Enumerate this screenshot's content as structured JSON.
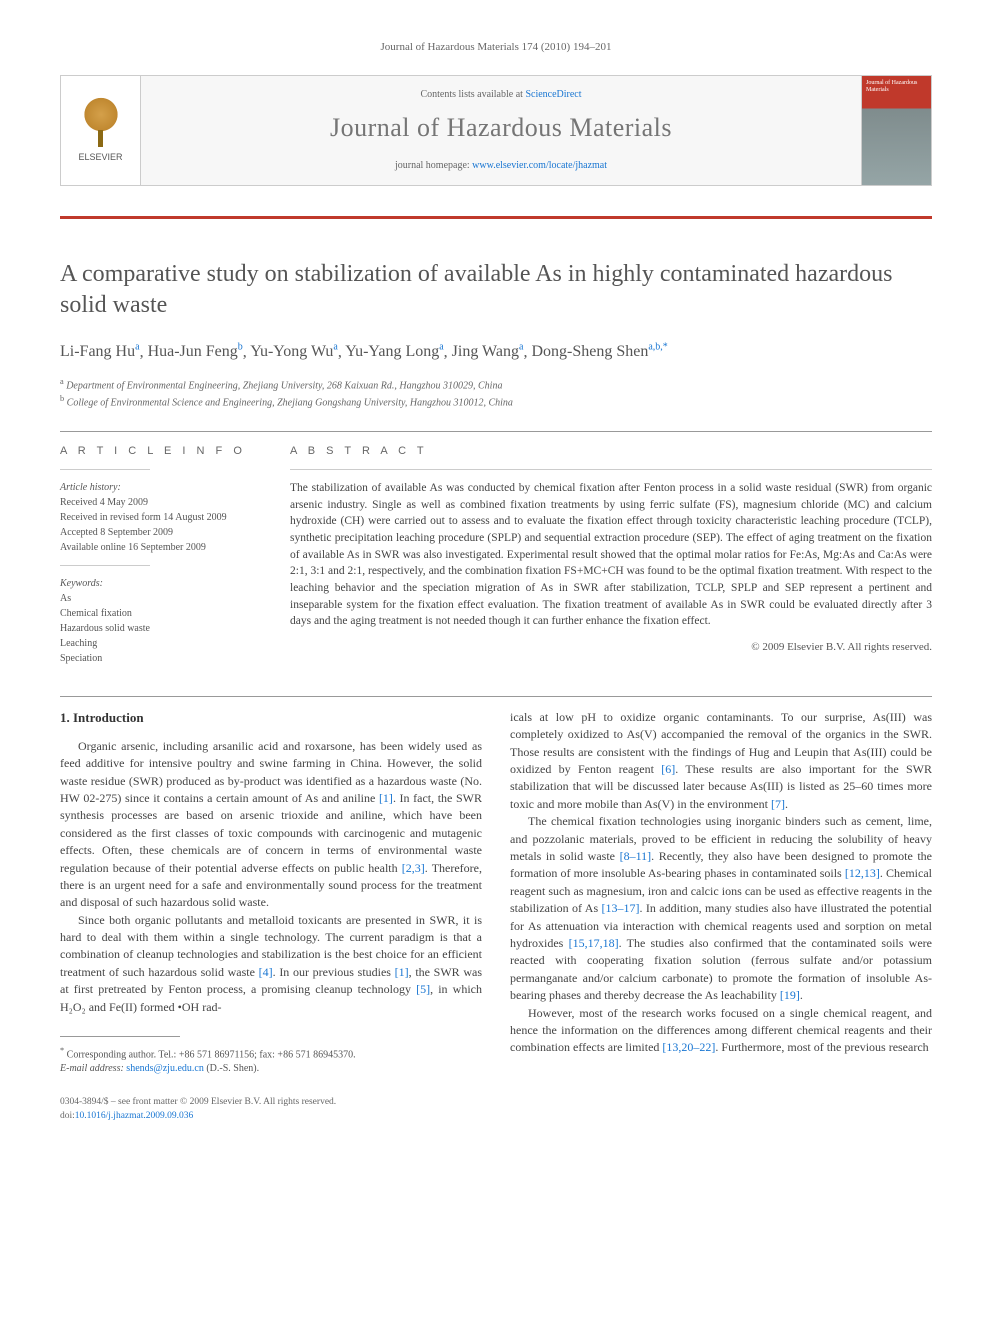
{
  "header": {
    "citation": "Journal of Hazardous Materials 174 (2010) 194–201"
  },
  "banner": {
    "publisher": "ELSEVIER",
    "contents_prefix": "Contents lists available at ",
    "contents_link": "ScienceDirect",
    "journal_title": "Journal of Hazardous Materials",
    "homepage_prefix": "journal homepage: ",
    "homepage_url": "www.elsevier.com/locate/jhazmat",
    "cover_text": "Journal of Hazardous Materials"
  },
  "article": {
    "title": "A comparative study on stabilization of available As in highly contaminated hazardous solid waste",
    "authors_html": "Li-Fang Hu|a|, Hua-Jun Feng|b|, Yu-Yong Wu|a|, Yu-Yang Long|a|, Jing Wang|a|, Dong-Sheng Shen|a,b,*|",
    "authors": [
      {
        "name": "Li-Fang Hu",
        "aff": "a"
      },
      {
        "name": "Hua-Jun Feng",
        "aff": "b"
      },
      {
        "name": "Yu-Yong Wu",
        "aff": "a"
      },
      {
        "name": "Yu-Yang Long",
        "aff": "a"
      },
      {
        "name": "Jing Wang",
        "aff": "a"
      },
      {
        "name": "Dong-Sheng Shen",
        "aff": "a,b,",
        "star": "*"
      }
    ],
    "affiliations": [
      {
        "sup": "a",
        "text": "Department of Environmental Engineering, Zhejiang University, 268 Kaixuan Rd., Hangzhou 310029, China"
      },
      {
        "sup": "b",
        "text": "College of Environmental Science and Engineering, Zhejiang Gongshang University, Hangzhou 310012, China"
      }
    ]
  },
  "info": {
    "heading": "A R T I C L E   I N F O",
    "history_label": "Article history:",
    "history": [
      "Received 4 May 2009",
      "Received in revised form 14 August 2009",
      "Accepted 8 September 2009",
      "Available online 16 September 2009"
    ],
    "keywords_label": "Keywords:",
    "keywords": [
      "As",
      "Chemical fixation",
      "Hazardous solid waste",
      "Leaching",
      "Speciation"
    ]
  },
  "abstract": {
    "heading": "A B S T R A C T",
    "text": "The stabilization of available As was conducted by chemical fixation after Fenton process in a solid waste residual (SWR) from organic arsenic industry. Single as well as combined fixation treatments by using ferric sulfate (FS), magnesium chloride (MC) and calcium hydroxide (CH) were carried out to assess and to evaluate the fixation effect through toxicity characteristic leaching procedure (TCLP), synthetic precipitation leaching procedure (SPLP) and sequential extraction procedure (SEP). The effect of aging treatment on the fixation of available As in SWR was also investigated. Experimental result showed that the optimal molar ratios for Fe:As, Mg:As and Ca:As were 2:1, 3:1 and 2:1, respectively, and the combination fixation FS+MC+CH was found to be the optimal fixation treatment. With respect to the leaching behavior and the speciation migration of As in SWR after stabilization, TCLP, SPLP and SEP represent a pertinent and inseparable system for the fixation effect evaluation. The fixation treatment of available As in SWR could be evaluated directly after 3 days and the aging treatment is not needed though it can further enhance the fixation effect.",
    "copyright": "© 2009 Elsevier B.V. All rights reserved."
  },
  "body": {
    "section1_heading": "1.  Introduction",
    "p1": "Organic arsenic, including arsanilic acid and roxarsone, has been widely used as feed additive for intensive poultry and swine farming in China. However, the solid waste residue (SWR) produced as by-product was identified as a hazardous waste (No. HW 02-275) since it contains a certain amount of As and aniline [1]. In fact, the SWR synthesis processes are based on arsenic trioxide and aniline, which have been considered as the first classes of toxic compounds with carcinogenic and mutagenic effects. Often, these chemicals are of concern in terms of environmental waste regulation because of their potential adverse effects on public health [2,3]. Therefore, there is an urgent need for a safe and environmentally sound process for the treatment and disposal of such hazardous solid waste.",
    "p2": "Since both organic pollutants and metalloid toxicants are presented in SWR, it is hard to deal with them within a single technology. The current paradigm is that a combination of cleanup technologies and stabilization is the best choice for an efficient treatment of such hazardous solid waste [4]. In our previous studies [1], the SWR was at first pretreated by Fenton process, a promising cleanup technology [5], in which H₂O₂ and Fe(II) formed •OH rad-",
    "p3": "icals at low pH to oxidize organic contaminants. To our surprise, As(III) was completely oxidized to As(V) accompanied the removal of the organics in the SWR. Those results are consistent with the findings of Hug and Leupin that As(III) could be oxidized by Fenton reagent [6]. These results are also important for the SWR stabilization that will be discussed later because As(III) is listed as 25–60 times more toxic and more mobile than As(V) in the environment [7].",
    "p4": "The chemical fixation technologies using inorganic binders such as cement, lime, and pozzolanic materials, proved to be efficient in reducing the solubility of heavy metals in solid waste [8–11]. Recently, they also have been designed to promote the formation of more insoluble As-bearing phases in contaminated soils [12,13]. Chemical reagent such as magnesium, iron and calcic ions can be used as effective reagents in the stabilization of As [13–17]. In addition, many studies also have illustrated the potential for As attenuation via interaction with chemical reagents used and sorption on metal hydroxides [15,17,18]. The studies also confirmed that the contaminated soils were reacted with cooperating fixation solution (ferrous sulfate and/or potassium permanganate and/or calcium carbonate) to promote the formation of insoluble As-bearing phases and thereby decrease the As leachability [19].",
    "p5": "However, most of the research works focused on a single chemical reagent, and hence the information on the differences among different chemical reagents and their combination effects are limited [13,20–22]. Furthermore, most of the previous research"
  },
  "corresponding": {
    "star": "*",
    "label": "Corresponding author. Tel.: +86 571 86971156; fax: +86 571 86945370.",
    "email_label": "E-mail address:",
    "email": "shends@zju.edu.cn",
    "email_suffix": "(D.-S. Shen)."
  },
  "footer": {
    "line1": "0304-3894/$ – see front matter © 2009 Elsevier B.V. All rights reserved.",
    "doi_prefix": "doi:",
    "doi": "10.1016/j.jhazmat.2009.09.036"
  },
  "cite_refs": {
    "r1": "[1]",
    "r23": "[2,3]",
    "r4": "[4]",
    "r5": "[5]",
    "r6": "[6]",
    "r7": "[7]",
    "r811": "[8–11]",
    "r1213": "[12,13]",
    "r1317": "[13–17]",
    "r151718": "[15,17,18]",
    "r19": "[19]",
    "r132022": "[13,20–22]"
  }
}
